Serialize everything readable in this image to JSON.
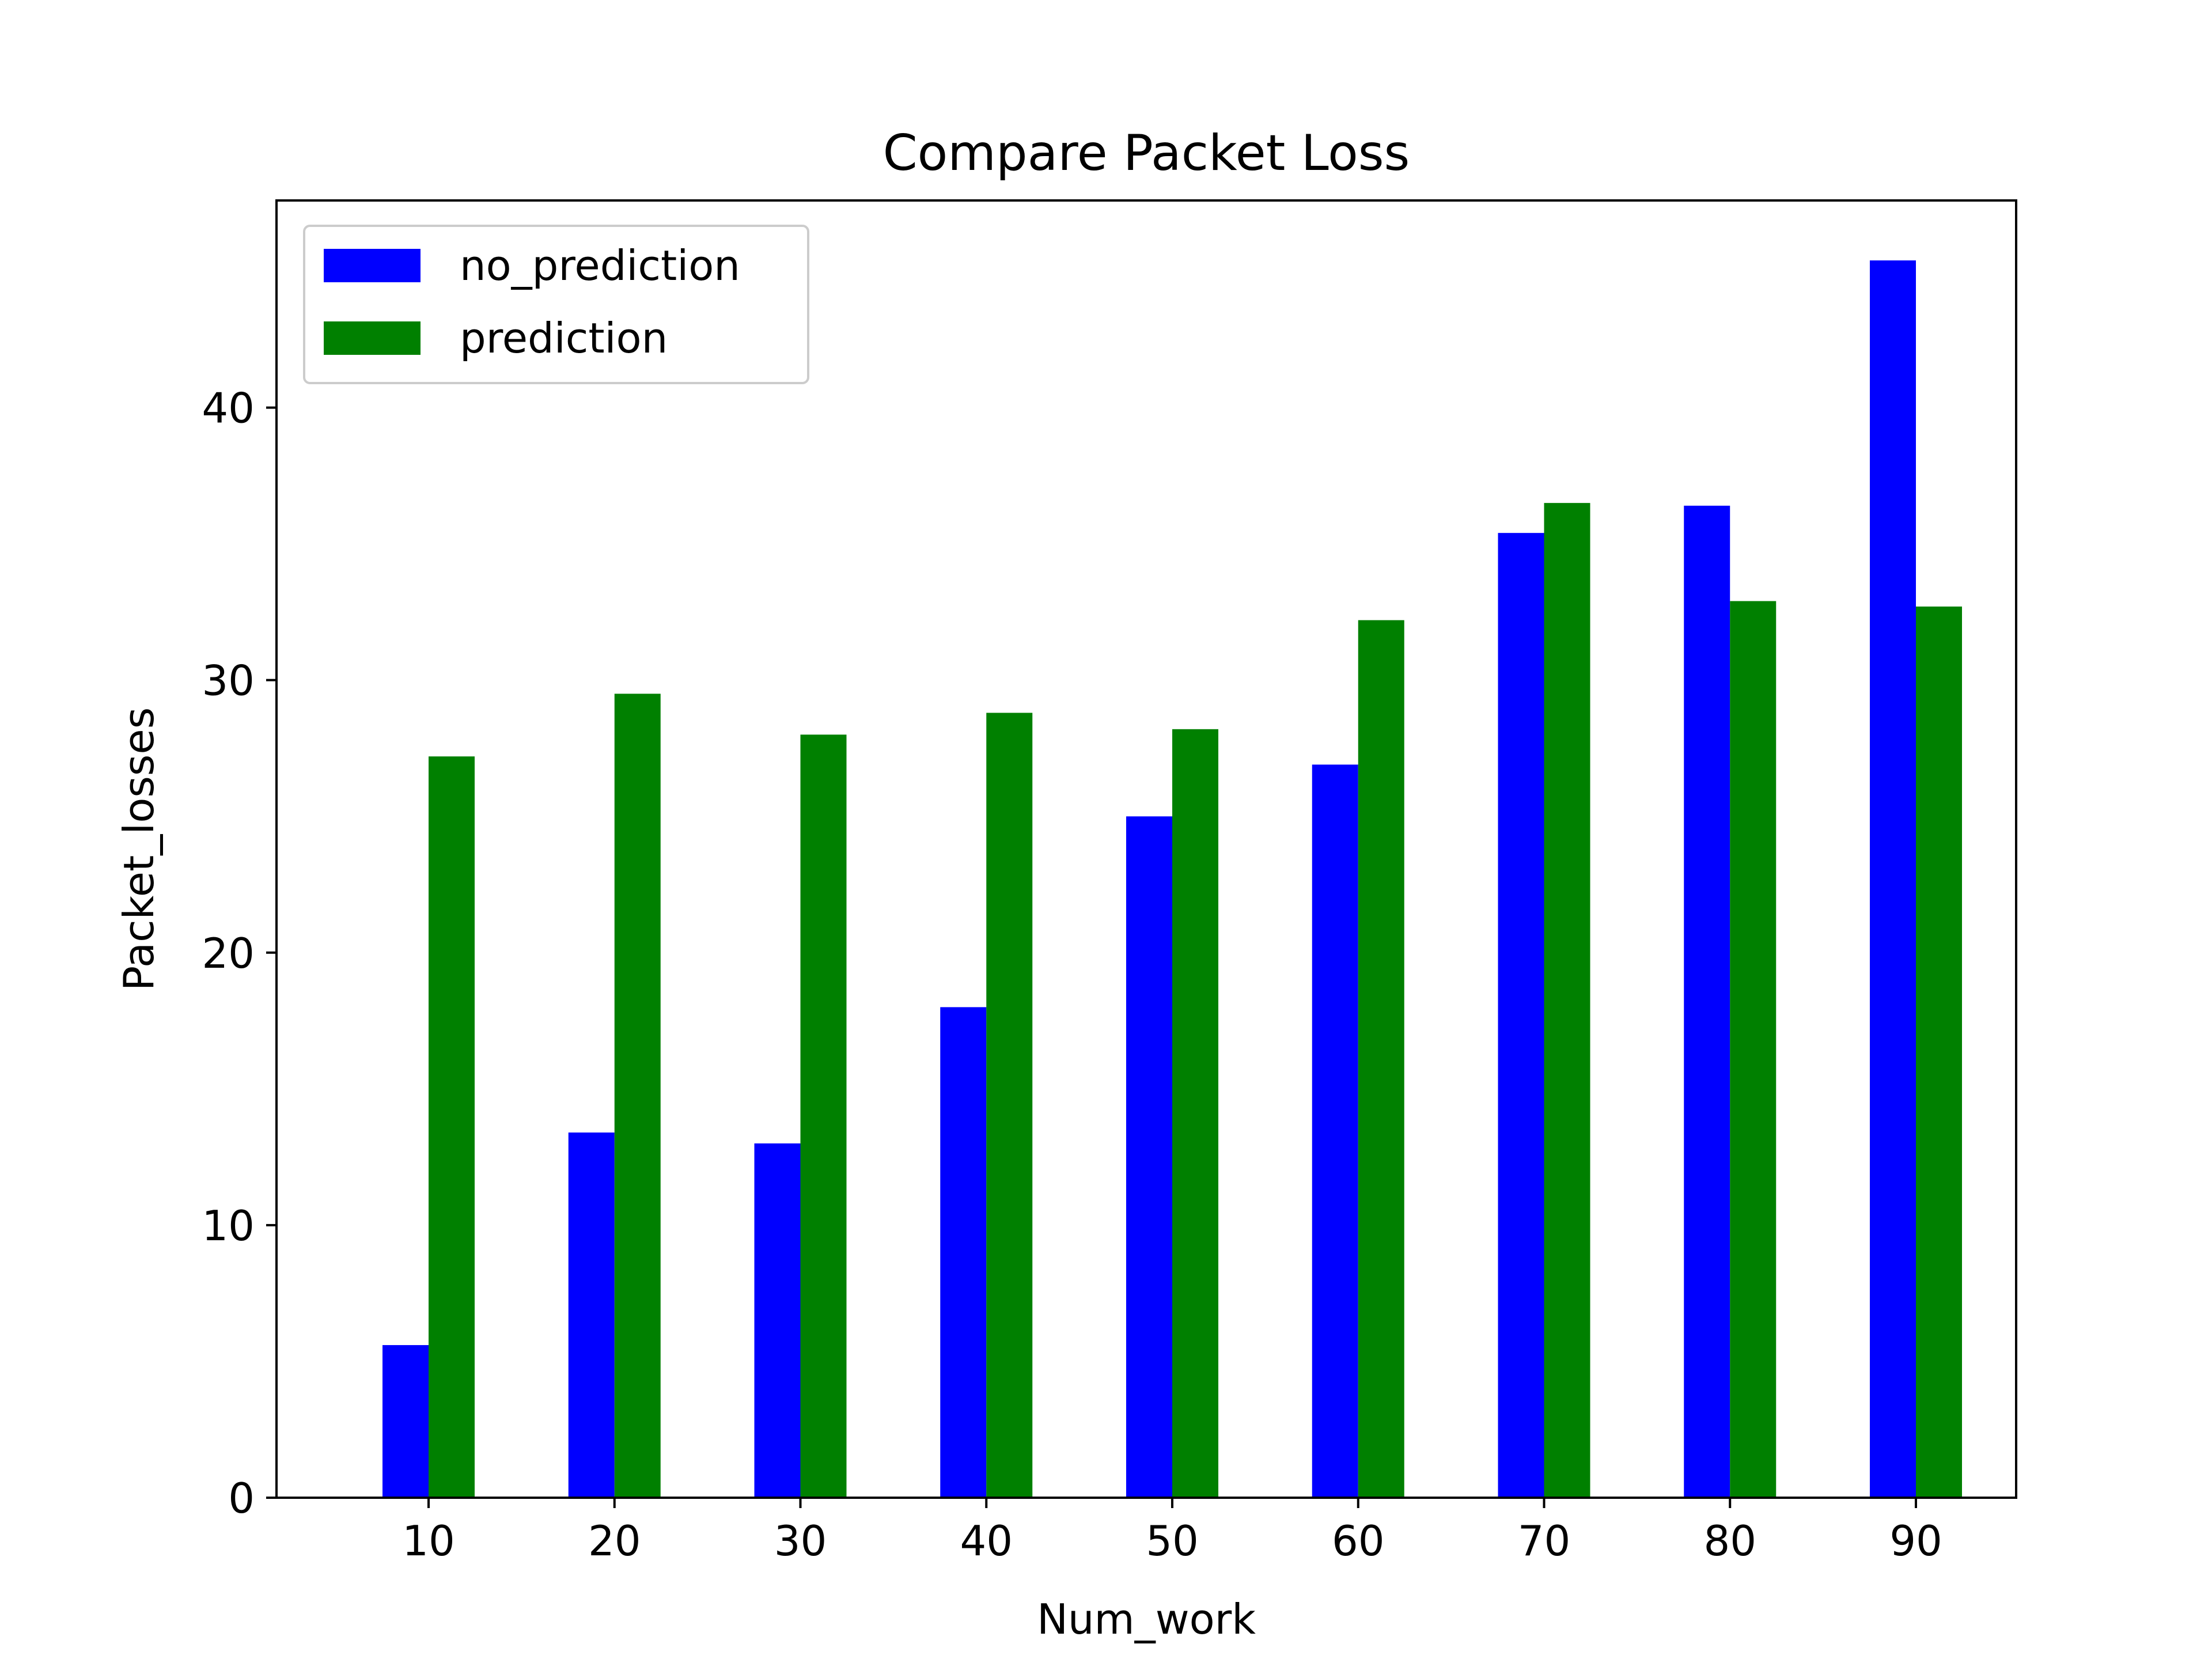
{
  "chart_data": {
    "type": "bar",
    "title": "Compare Packet Loss",
    "xlabel": "Num_work",
    "ylabel": "Packet_losses",
    "categories": [
      "10",
      "20",
      "30",
      "40",
      "50",
      "60",
      "70",
      "80",
      "90"
    ],
    "series": [
      {
        "name": "no_prediction",
        "color": "#0000ff",
        "values": [
          5.6,
          13.4,
          13.0,
          18.0,
          25.0,
          26.9,
          35.4,
          36.4,
          45.4
        ]
      },
      {
        "name": "prediction",
        "color": "#008000",
        "values": [
          27.2,
          29.5,
          28.0,
          28.8,
          28.2,
          32.2,
          36.5,
          32.9,
          32.7
        ]
      }
    ],
    "ylim": [
      0,
      47.6
    ],
    "yticks": [
      0,
      10,
      20,
      30,
      40
    ],
    "grid": false,
    "legend_position": "upper-left"
  }
}
